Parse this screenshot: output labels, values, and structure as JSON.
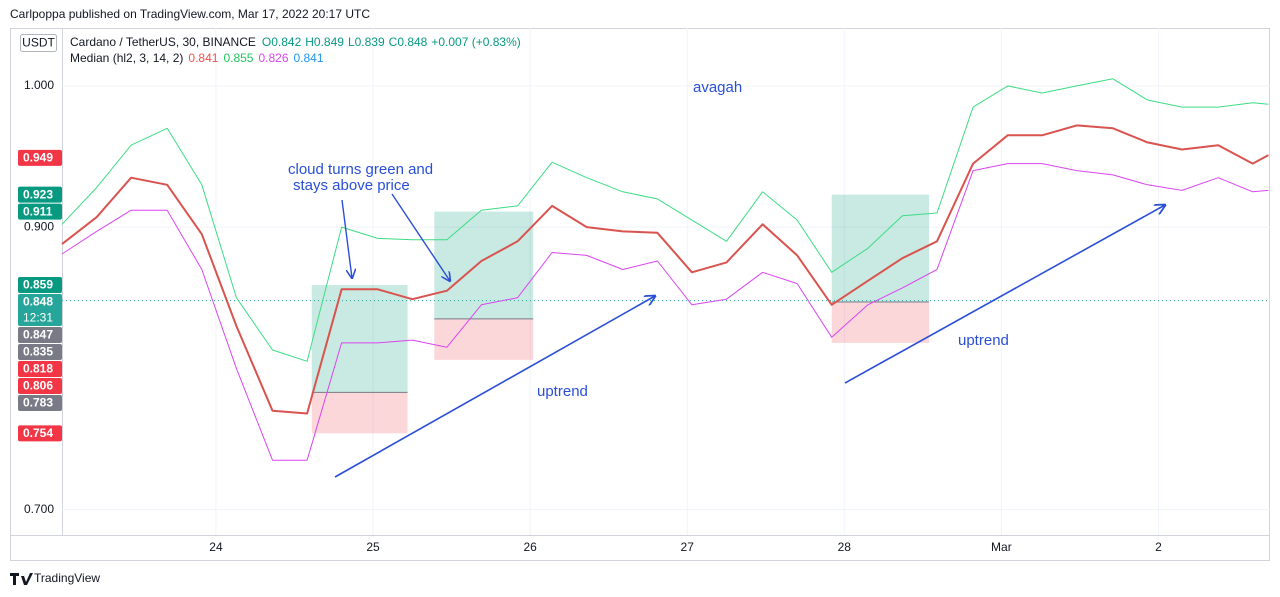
{
  "header": {
    "published": "Carlpoppa published on TradingView.com, Mar 17, 2022 20:17 UTC"
  },
  "footer": {
    "brand": "TradingView"
  },
  "chart_data": {
    "type": "line",
    "currency": "USDT",
    "symbol": "Cardano / TetherUS, 30, BINANCE",
    "ohlc": [
      "O0.842",
      "H0.849",
      "L0.839",
      "C0.848",
      "+0.007 (+0.83%)"
    ],
    "indicator": "Median (hl2, 3, 14, 2)",
    "indicator_values": [
      {
        "text": "0.841",
        "color": "#ef5350"
      },
      {
        "text": "0.855",
        "color": "#22c55e"
      },
      {
        "text": "0.826",
        "color": "#d946ef"
      },
      {
        "text": "0.841",
        "color": "#2196f3"
      }
    ],
    "annotations": [
      "avagah",
      "cloud turns green and",
      "stays above price",
      "uptrend",
      "uptrend"
    ],
    "x": [
      23.02,
      23.24,
      23.46,
      23.69,
      23.91,
      24.13,
      24.36,
      24.58,
      24.8,
      25.03,
      25.25,
      25.47,
      25.69,
      25.92,
      26.14,
      26.36,
      26.59,
      26.81,
      27.03,
      27.25,
      27.48,
      27.7,
      27.92,
      28.15,
      28.37,
      28.59,
      28.82,
      29.04,
      29.26,
      29.48,
      29.71,
      29.93,
      30.15,
      30.38,
      30.6,
      30.7
    ],
    "series": [
      {
        "name": "Upper",
        "color": "#3ddc84",
        "width": 1,
        "values": [
          0.902,
          0.928,
          0.958,
          0.97,
          0.93,
          0.85,
          0.813,
          0.805,
          0.9,
          0.892,
          0.891,
          0.891,
          0.912,
          0.915,
          0.946,
          0.935,
          0.925,
          0.92,
          0.905,
          0.89,
          0.925,
          0.905,
          0.868,
          0.885,
          0.908,
          0.91,
          0.985,
          1.0,
          0.995,
          1.0,
          1.005,
          0.99,
          0.985,
          0.985,
          0.988,
          0.987
        ]
      },
      {
        "name": "Lower",
        "color": "#d946ef",
        "width": 1,
        "values": [
          0.881,
          0.897,
          0.912,
          0.912,
          0.87,
          0.8,
          0.735,
          0.735,
          0.818,
          0.818,
          0.82,
          0.815,
          0.845,
          0.85,
          0.882,
          0.88,
          0.87,
          0.876,
          0.845,
          0.849,
          0.868,
          0.86,
          0.822,
          0.845,
          0.857,
          0.87,
          0.94,
          0.945,
          0.945,
          0.94,
          0.937,
          0.93,
          0.926,
          0.935,
          0.925,
          0.926
        ]
      },
      {
        "name": "Price",
        "color": "#d9534f",
        "width": 2,
        "values": [
          0.888,
          0.907,
          0.935,
          0.93,
          0.895,
          0.83,
          0.77,
          0.768,
          0.856,
          0.856,
          0.849,
          0.855,
          0.876,
          0.89,
          0.915,
          0.9,
          0.897,
          0.896,
          0.868,
          0.875,
          0.902,
          0.88,
          0.845,
          0.862,
          0.878,
          0.89,
          0.945,
          0.965,
          0.965,
          0.972,
          0.97,
          0.96,
          0.955,
          0.958,
          0.945,
          0.951
        ]
      }
    ],
    "positions": [
      {
        "start": 24.61,
        "end": 25.22,
        "target": 0.859,
        "entry": 0.783,
        "stop": 0.754
      },
      {
        "start": 25.39,
        "end": 26.02,
        "target": 0.911,
        "entry": 0.835,
        "stop": 0.806
      },
      {
        "start": 27.92,
        "end": 28.54,
        "target": 0.923,
        "entry": 0.847,
        "stop": 0.818
      }
    ],
    "price_badges": [
      {
        "value": 0.949,
        "color": "#f23645"
      },
      {
        "value": 0.923,
        "color": "#089981"
      },
      {
        "value": 0.911,
        "color": "#089981"
      },
      {
        "value": 0.859,
        "color": "#089981"
      },
      {
        "value": 0.848,
        "color": "#26a69a",
        "countdown": "12:31"
      },
      {
        "value": 0.847,
        "color": "#787b86"
      },
      {
        "value": 0.835,
        "color": "#787b86"
      },
      {
        "value": 0.818,
        "color": "#f23645"
      },
      {
        "value": 0.806,
        "color": "#f23645"
      },
      {
        "value": 0.783,
        "color": "#787b86"
      },
      {
        "value": 0.754,
        "color": "#f23645"
      }
    ],
    "xlim": [
      23.02,
      30.71
    ],
    "xticks": [
      24,
      25,
      26,
      27,
      28,
      {
        "value": 29,
        "label": "Mar"
      },
      {
        "value": 30,
        "label": "2"
      }
    ],
    "ylim": [
      0.682,
      1.041
    ],
    "yticks": [
      {
        "value": 0.7,
        "label": "0.700"
      },
      {
        "value": 0.9,
        "label": "0.900"
      },
      {
        "value": 1.0,
        "label": "1.000"
      }
    ],
    "grid": true
  }
}
